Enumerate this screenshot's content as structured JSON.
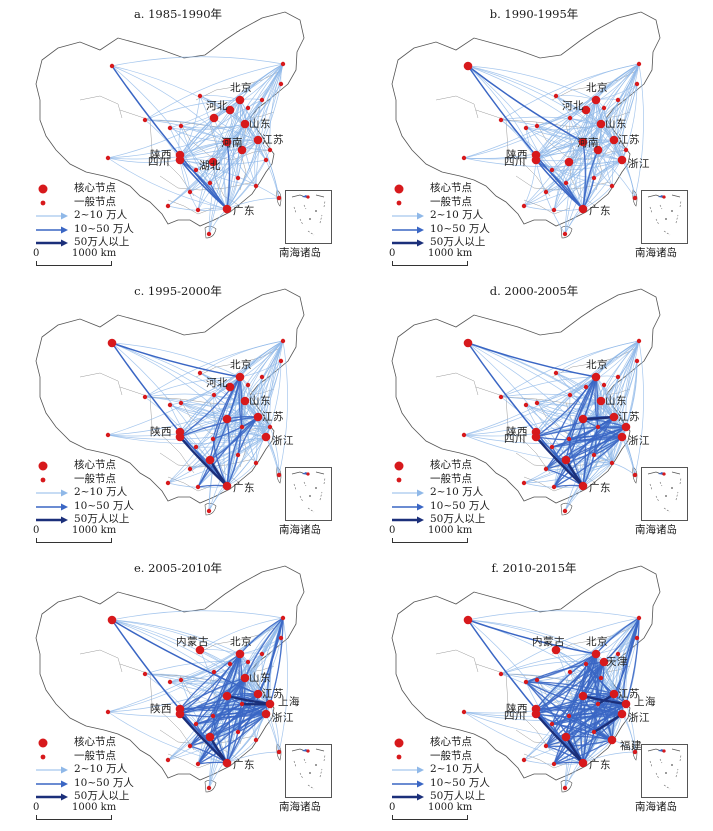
{
  "legend": {
    "core_node": "核心节点",
    "general_node": "一般节点",
    "flow_small": "2~10 万人",
    "flow_medium": "10~50 万人",
    "flow_large": "50万人以上"
  },
  "scale": {
    "zero": "0",
    "distance": "1000 km"
  },
  "inset_label": "南海诸岛",
  "colors": {
    "flow_small": "#8fb8e8",
    "flow_medium": "#3a66c4",
    "flow_large": "#1b2f7a",
    "node": "#d7191c",
    "boundary": "#555555"
  },
  "panels": [
    {
      "title": "a. 1985-1990年",
      "cities": [
        {
          "id": "beijing",
          "label": "北京"
        },
        {
          "id": "hebei",
          "label": "河北"
        },
        {
          "id": "shandong",
          "label": "山东"
        },
        {
          "id": "shaanxi",
          "label": "陕西"
        },
        {
          "id": "henan",
          "label": "河南"
        },
        {
          "id": "jiangsu",
          "label": "江苏"
        },
        {
          "id": "sichuan",
          "label": "四川"
        },
        {
          "id": "hubei",
          "label": "湖北"
        },
        {
          "id": "guangdong",
          "label": "广东"
        }
      ],
      "flows": {
        "large": [],
        "medium": [
          [
            "xinjiang",
            "guangdong"
          ],
          [
            "sichuan",
            "guangdong"
          ]
        ]
      }
    },
    {
      "title": "b. 1990-1995年",
      "cities": [
        {
          "id": "beijing",
          "label": "北京"
        },
        {
          "id": "hebei",
          "label": "河北"
        },
        {
          "id": "shandong",
          "label": "山东"
        },
        {
          "id": "shaanxi",
          "label": "陕西"
        },
        {
          "id": "henan",
          "label": "河南"
        },
        {
          "id": "jiangsu",
          "label": "江苏"
        },
        {
          "id": "sichuan",
          "label": "四川"
        },
        {
          "id": "zhejiang",
          "label": "浙江"
        },
        {
          "id": "guangdong",
          "label": "广东"
        }
      ],
      "flows": {
        "large": [],
        "medium": [
          [
            "xinjiang",
            "guangdong"
          ],
          [
            "sichuan",
            "guangdong"
          ],
          [
            "xinjiang",
            "henan"
          ]
        ]
      }
    },
    {
      "title": "c. 1995-2000年",
      "cities": [
        {
          "id": "beijing",
          "label": "北京"
        },
        {
          "id": "hebei",
          "label": "河北"
        },
        {
          "id": "shandong",
          "label": "山东"
        },
        {
          "id": "shaanxi",
          "label": "陕西"
        },
        {
          "id": "jiangsu",
          "label": "江苏"
        },
        {
          "id": "zhejiang",
          "label": "浙江"
        },
        {
          "id": "guangdong",
          "label": "广东"
        }
      ],
      "flows": {
        "large": [
          [
            "sichuan",
            "guangdong"
          ],
          [
            "hunan",
            "guangdong"
          ]
        ],
        "medium": [
          [
            "xinjiang",
            "guangdong"
          ],
          [
            "xinjiang",
            "beijing"
          ]
        ]
      }
    },
    {
      "title": "d. 2000-2005年",
      "cities": [
        {
          "id": "beijing",
          "label": "北京"
        },
        {
          "id": "shandong",
          "label": "山东"
        },
        {
          "id": "shaanxi",
          "label": "陕西"
        },
        {
          "id": "jiangsu",
          "label": "江苏"
        },
        {
          "id": "sichuan",
          "label": "四川"
        },
        {
          "id": "zhejiang",
          "label": "浙江"
        },
        {
          "id": "guangdong",
          "label": "广东"
        }
      ],
      "flows": {
        "large": [
          [
            "sichuan",
            "guangdong"
          ],
          [
            "hunan",
            "guangdong"
          ],
          [
            "henan",
            "jiangsu"
          ]
        ],
        "medium": [
          [
            "xinjiang",
            "guangdong"
          ],
          [
            "xinjiang",
            "beijing"
          ]
        ]
      }
    },
    {
      "title": "e. 2005-2010年",
      "cities": [
        {
          "id": "neimenggu",
          "label": "内蒙古"
        },
        {
          "id": "beijing",
          "label": "北京"
        },
        {
          "id": "shandong",
          "label": "山东"
        },
        {
          "id": "shaanxi",
          "label": "陕西"
        },
        {
          "id": "jiangsu",
          "label": "江苏"
        },
        {
          "id": "shanghai",
          "label": "上海"
        },
        {
          "id": "zhejiang",
          "label": "浙江"
        },
        {
          "id": "guangdong",
          "label": "广东"
        }
      ],
      "flows": {
        "large": [
          [
            "sichuan",
            "guangdong"
          ],
          [
            "hunan",
            "guangdong"
          ],
          [
            "henan",
            "shanghai"
          ],
          [
            "anhui",
            "shanghai"
          ]
        ],
        "medium": [
          [
            "xinjiang",
            "guangdong"
          ],
          [
            "xinjiang",
            "jiangsu"
          ]
        ]
      }
    },
    {
      "title": "f. 2010-2015年",
      "cities": [
        {
          "id": "neimenggu",
          "label": "内蒙古"
        },
        {
          "id": "beijing",
          "label": "北京"
        },
        {
          "id": "tianjin",
          "label": "天津"
        },
        {
          "id": "shaanxi",
          "label": "陕西"
        },
        {
          "id": "jiangsu",
          "label": "江苏"
        },
        {
          "id": "shanghai",
          "label": "上海"
        },
        {
          "id": "sichuan",
          "label": "四川"
        },
        {
          "id": "zhejiang",
          "label": "浙江"
        },
        {
          "id": "fujian",
          "label": "福建"
        },
        {
          "id": "guangdong",
          "label": "广东"
        }
      ],
      "flows": {
        "large": [
          [
            "sichuan",
            "guangdong"
          ],
          [
            "hunan",
            "guangdong"
          ],
          [
            "henan",
            "shanghai"
          ],
          [
            "anhui",
            "jiangsu"
          ],
          [
            "jiangxi",
            "zhejiang"
          ]
        ],
        "medium": [
          [
            "xinjiang",
            "guangdong"
          ],
          [
            "xinjiang",
            "beijing"
          ]
        ]
      }
    }
  ]
}
